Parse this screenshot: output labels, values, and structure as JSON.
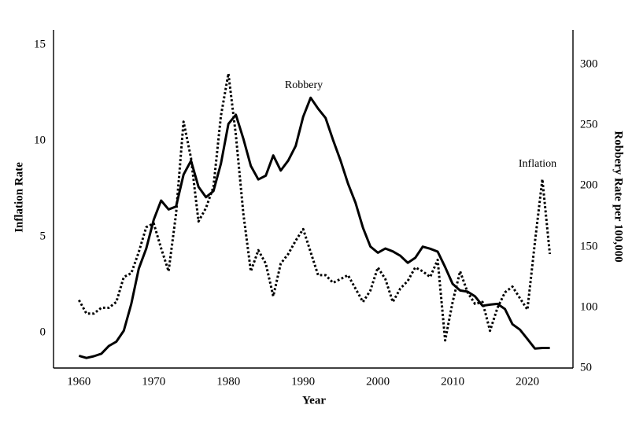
{
  "figure": {
    "left_axis": {
      "title": "Inflation Rate"
    },
    "right_axis": {
      "title": "Robbery Rate per 100,000"
    },
    "x_axis": {
      "title": "Year"
    },
    "annotations": {
      "robbery": "Robbery",
      "inflation": "Inflation"
    },
    "colors": {
      "line": "#000000",
      "background": "#ffffff"
    }
  },
  "chart_data": {
    "type": "line",
    "title": "",
    "xlabel": "Year",
    "ylabel_left": "Inflation Rate",
    "ylabel_right": "Robbery Rate per 100,000",
    "grid": false,
    "legend": "inline-annotations",
    "x_ticks": [
      1960,
      1970,
      1980,
      1990,
      2000,
      2010,
      2020
    ],
    "left_ticks": [
      0,
      5,
      10,
      15
    ],
    "right_ticks": [
      50,
      100,
      150,
      200,
      250,
      300
    ],
    "xlim": [
      1956.6,
      2026.1
    ],
    "left_ylim": [
      -1.84,
      15.78
    ],
    "right_ylim": [
      50,
      328.6
    ],
    "x": [
      1960,
      1961,
      1962,
      1963,
      1964,
      1965,
      1966,
      1967,
      1968,
      1969,
      1970,
      1971,
      1972,
      1973,
      1974,
      1975,
      1976,
      1977,
      1978,
      1979,
      1980,
      1981,
      1982,
      1983,
      1984,
      1985,
      1986,
      1987,
      1988,
      1989,
      1990,
      1991,
      1992,
      1993,
      1994,
      1995,
      1996,
      1997,
      1998,
      1999,
      2000,
      2001,
      2002,
      2003,
      2004,
      2005,
      2006,
      2007,
      2008,
      2009,
      2010,
      2011,
      2012,
      2013,
      2014,
      2015,
      2016,
      2017,
      2018,
      2019,
      2020,
      2021,
      2022,
      2023
    ],
    "series": [
      {
        "name": "Robbery",
        "axis": "right",
        "line_style": "solid",
        "values": [
          60.1,
          58.3,
          59.7,
          61.8,
          68.2,
          71.7,
          80.8,
          102.8,
          131.8,
          148.4,
          172.1,
          188.0,
          180.7,
          183.1,
          209.3,
          220.8,
          199.3,
          190.7,
          195.8,
          218.4,
          251.1,
          258.7,
          238.9,
          216.5,
          205.4,
          208.5,
          225.1,
          212.7,
          220.9,
          233.0,
          257.0,
          272.7,
          263.7,
          256.0,
          237.8,
          220.9,
          201.9,
          186.2,
          165.5,
          150.1,
          145.0,
          148.5,
          146.1,
          142.5,
          136.7,
          140.8,
          150.0,
          148.3,
          145.9,
          133.1,
          119.3,
          113.9,
          112.9,
          109.0,
          101.3,
          102.2,
          102.9,
          98.6,
          86.1,
          81.6,
          73.9,
          66.1,
          66.5,
          66.5
        ]
      },
      {
        "name": "Inflation",
        "axis": "left",
        "line_style": "dotted",
        "values": [
          1.7,
          1.0,
          1.0,
          1.3,
          1.3,
          1.6,
          2.9,
          3.1,
          4.2,
          5.5,
          5.7,
          4.4,
          3.2,
          6.2,
          11.0,
          9.1,
          5.8,
          6.5,
          7.6,
          11.3,
          13.5,
          10.3,
          6.2,
          3.2,
          4.3,
          3.6,
          1.9,
          3.6,
          4.1,
          4.8,
          5.4,
          4.2,
          3.0,
          3.0,
          2.6,
          2.8,
          3.0,
          2.3,
          1.6,
          2.2,
          3.4,
          2.8,
          1.6,
          2.3,
          2.7,
          3.4,
          3.2,
          2.9,
          3.8,
          -0.4,
          1.6,
          3.2,
          2.1,
          1.5,
          1.6,
          0.1,
          1.3,
          2.1,
          2.4,
          1.8,
          1.2,
          4.7,
          8.0,
          4.1
        ]
      }
    ]
  }
}
